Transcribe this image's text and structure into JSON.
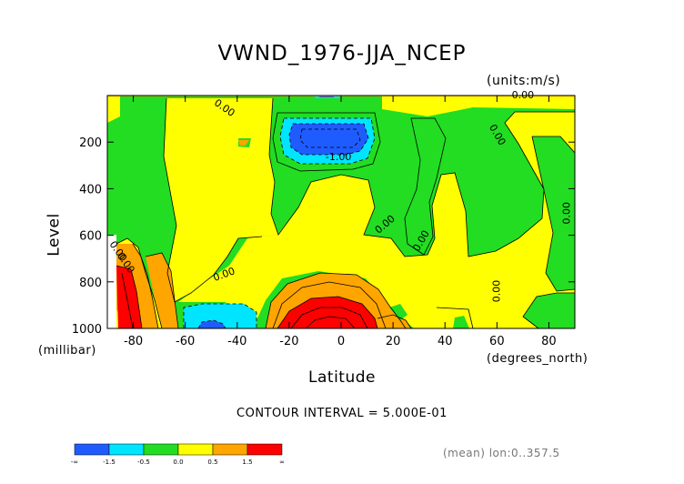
{
  "chart_data": {
    "type": "heatmap",
    "title": "VWND_1976-JJA_NCEP",
    "units": "(units:m/s)",
    "xlabel": "Latitude",
    "x_units": "(degrees_north)",
    "ylabel": "Level",
    "y_units": "(millibar)",
    "x_ticks": [
      "-80",
      "-60",
      "-40",
      "-20",
      "0",
      "20",
      "40",
      "60",
      "80"
    ],
    "y_ticks": [
      "200",
      "400",
      "600",
      "800",
      "1000"
    ],
    "xlim": [
      -90,
      90
    ],
    "ylim": [
      1000,
      0
    ],
    "contour_interval_text": "CONTOUR INTERVAL = 5.000E-01",
    "contour_labels": [
      "0.00",
      "0.00",
      "0.00",
      "0.00",
      "-1.00",
      "0.00",
      "0.00",
      "0.00",
      "0.00",
      "0.00",
      "0.00"
    ],
    "colorbar": {
      "colors": [
        "#1f5cff",
        "#00e5ff",
        "#22dd22",
        "#ffff00",
        "#ffa500",
        "#ff0000"
      ],
      "labels": [
        "-∞",
        "-1.5",
        "-0.5",
        "0.0",
        "0.5",
        "1.5",
        "∞"
      ]
    },
    "grid": false
  },
  "footer_text": "(mean) lon:0..357.5"
}
